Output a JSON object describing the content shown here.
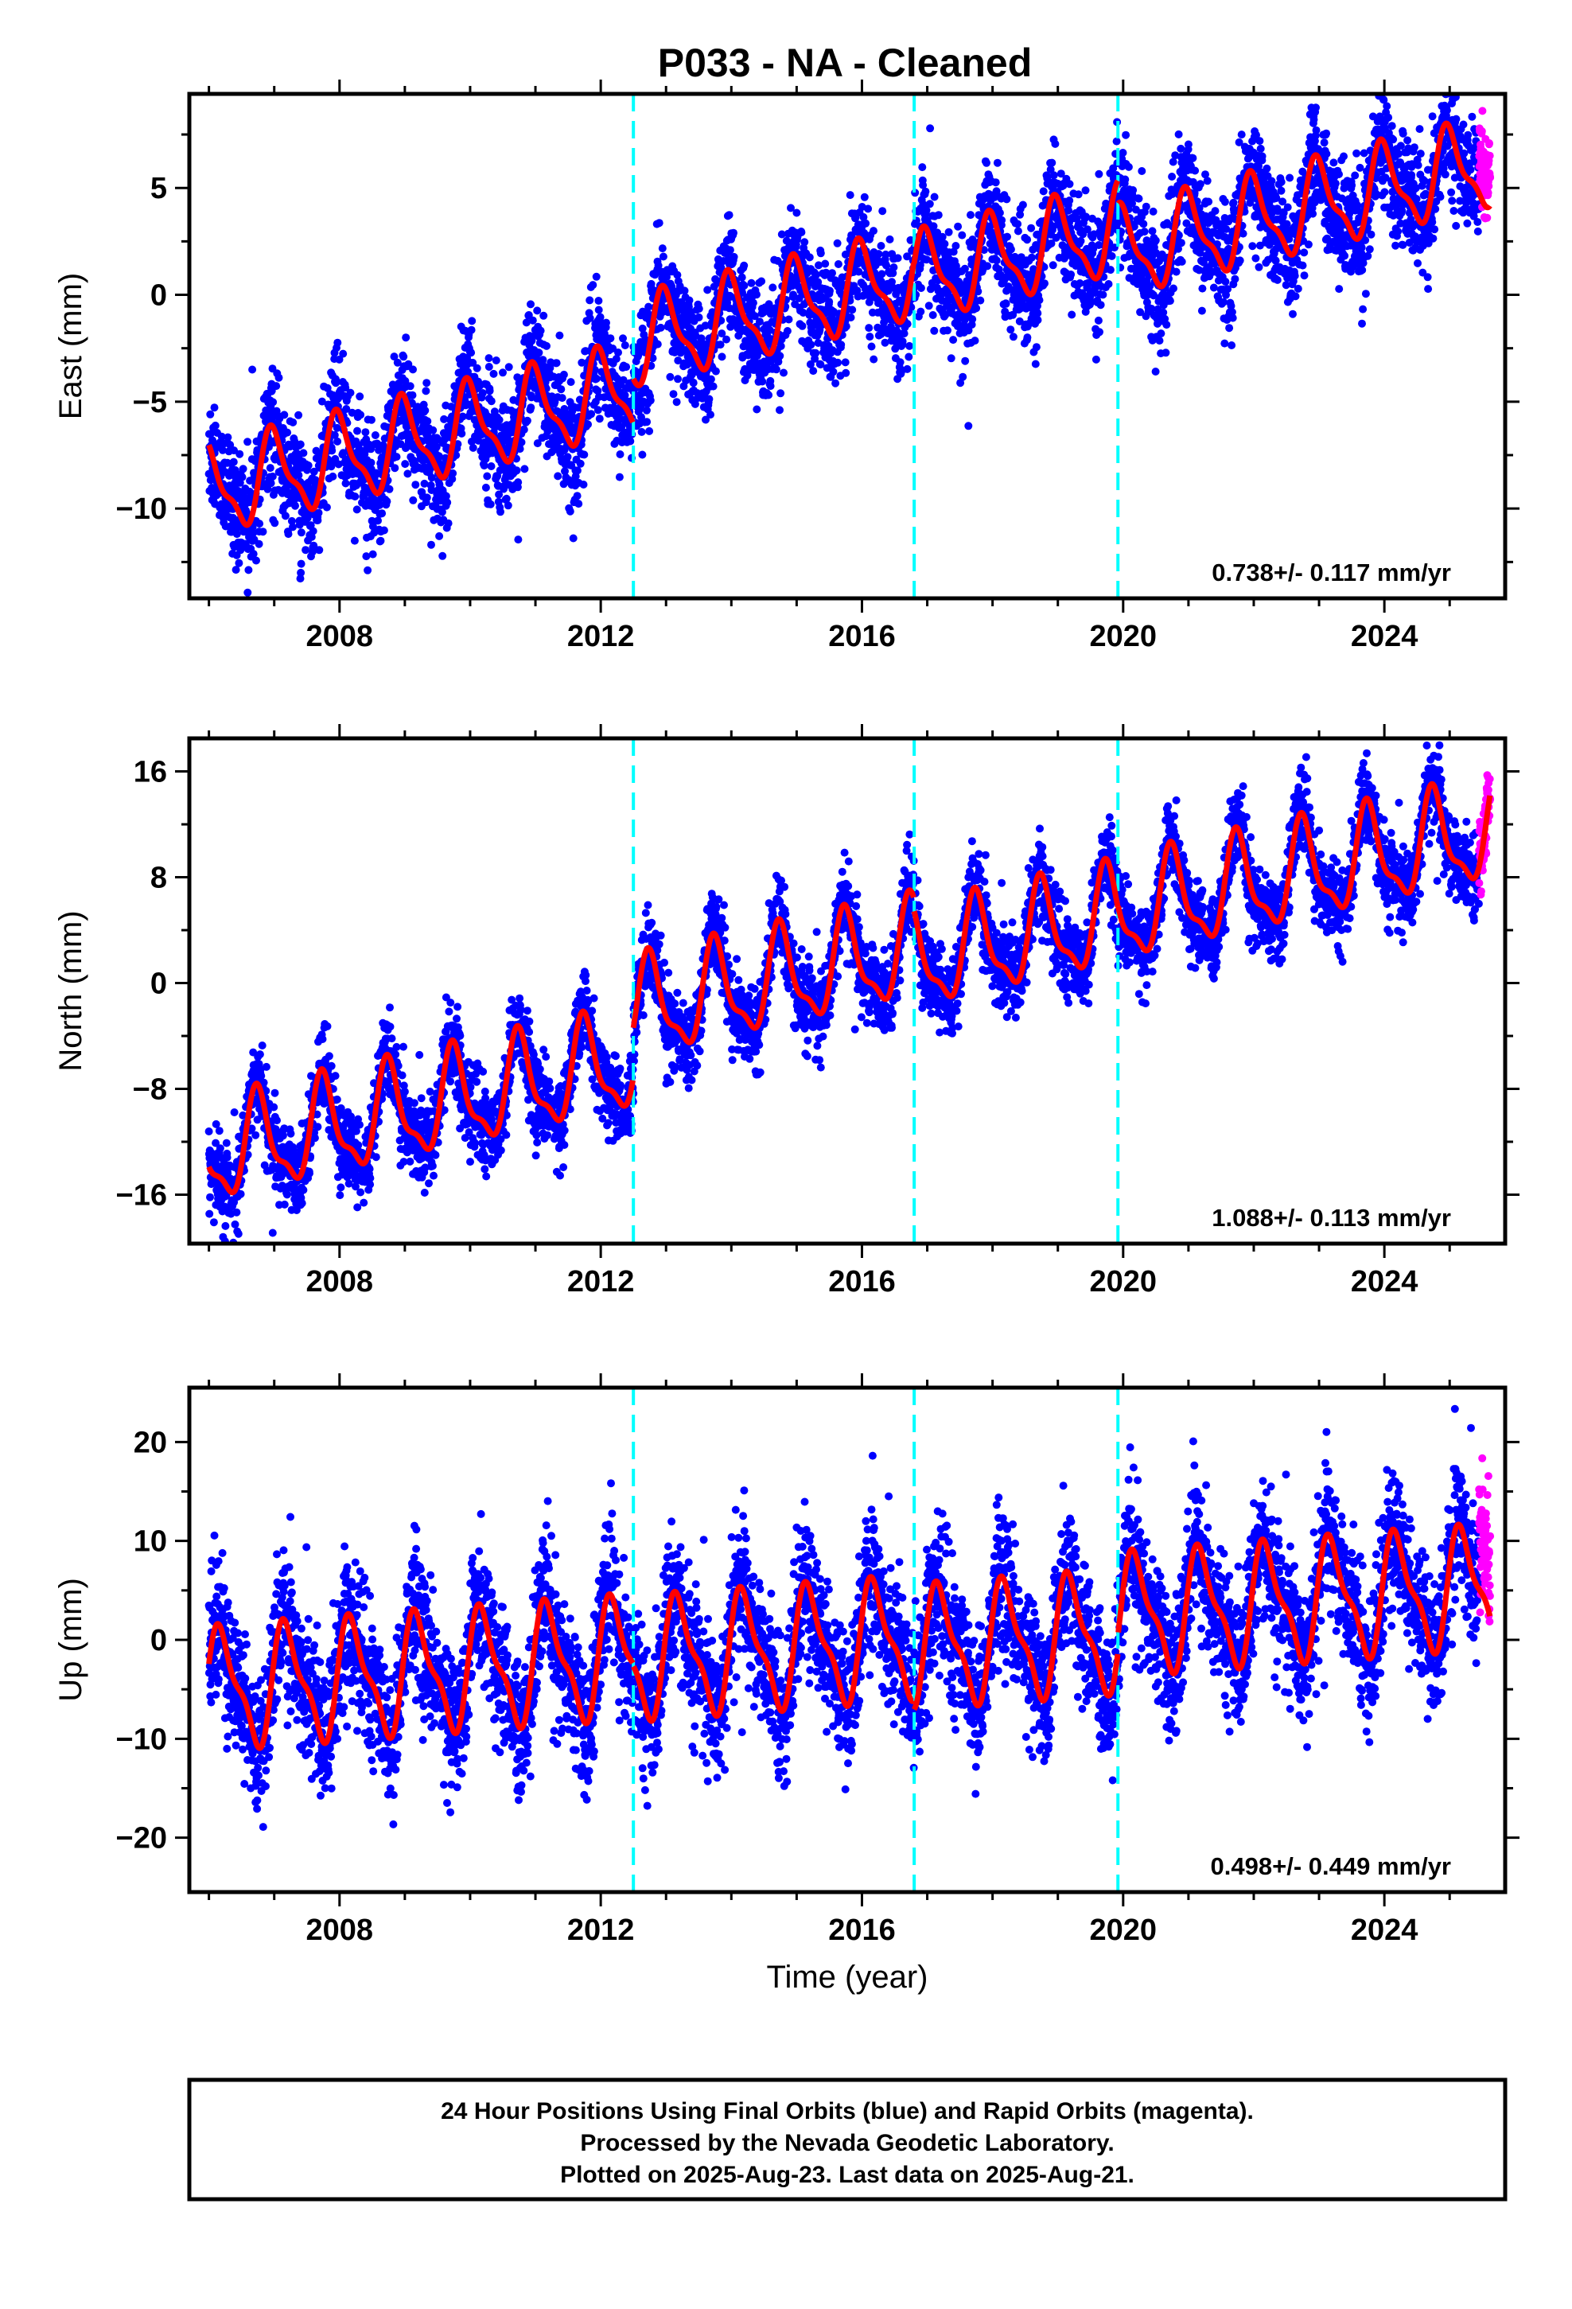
{
  "title": "P033  - NA - Cleaned",
  "xlabel": "Time (year)",
  "footer": {
    "line1": "24 Hour Positions Using Final Orbits (blue) and Rapid Orbits (magenta).",
    "line2": "Processed by the Nevada Geodetic Laboratory.",
    "line3": "Plotted on 2025-Aug-23. Last data on 2025-Aug-21."
  },
  "colors": {
    "final_orbits": "#0000ff",
    "rapid_orbits": "#ff00ff",
    "model": "#ff0000",
    "event_lines": "#00ffff",
    "frame": "#000000"
  },
  "chart_data": [
    {
      "type": "scatter",
      "panel": "east",
      "ylabel": "East (mm)",
      "rate_text": "0.738+/- 0.117 mm/yr",
      "xlim": [
        2005.7,
        2025.85
      ],
      "ylim": [
        -14.2,
        9.4
      ],
      "xticks": [
        2008,
        2012,
        2016,
        2020,
        2024
      ],
      "yticks": [
        -10,
        -5,
        0,
        5
      ],
      "yminor": [
        -12.5,
        -7.5,
        -2.5,
        2.5,
        7.5
      ],
      "event_lines": [
        2012.5,
        2016.8,
        2019.92
      ],
      "model": {
        "start": 2006.0,
        "end": 2025.62,
        "segments": [
          {
            "from": 2006.0,
            "to": 2012.5,
            "value_at_start": -9.2,
            "trend": 0.74,
            "amp": 1.9,
            "phase": 1.6
          },
          {
            "from": 2012.5,
            "to": 2016.8,
            "value_at_start": -2.3,
            "trend": 0.74,
            "amp": 1.9,
            "phase": 1.6
          },
          {
            "from": 2016.8,
            "to": 2019.92,
            "value_at_start": 0.7,
            "trend": 0.74,
            "amp": 1.9,
            "phase": 1.6
          },
          {
            "from": 2019.92,
            "to": 2025.62,
            "value_at_start": 1.9,
            "trend": 0.74,
            "amp": 1.9,
            "phase": 1.6
          }
        ]
      },
      "noise_sd": 1.3,
      "rapid_range": [
        2025.45,
        2025.62
      ],
      "rapid_offset": 1.6
    },
    {
      "type": "scatter",
      "panel": "north",
      "ylabel": "North (mm)",
      "rate_text": "1.088+/- 0.113 mm/yr",
      "xlim": [
        2005.7,
        2025.85
      ],
      "ylim": [
        -19.7,
        18.5
      ],
      "xticks": [
        2008,
        2012,
        2016,
        2020,
        2024
      ],
      "yticks": [
        -16,
        -8,
        0,
        8,
        16
      ],
      "yminor": [
        -12,
        -4,
        4,
        12
      ],
      "event_lines": [
        2012.5,
        2016.8,
        2019.92
      ],
      "model": {
        "start": 2006.0,
        "end": 2025.62,
        "segments": [
          {
            "from": 2006.0,
            "to": 2012.5,
            "value_at_start": -13.0,
            "trend": 1.09,
            "amp": 3.5,
            "phase": 3.1
          },
          {
            "from": 2012.5,
            "to": 2016.8,
            "value_at_start": -2.2,
            "trend": 1.09,
            "amp": 3.5,
            "phase": 3.1
          },
          {
            "from": 2016.8,
            "to": 2019.92,
            "value_at_start": 1.6,
            "trend": 1.09,
            "amp": 3.5,
            "phase": 3.1
          },
          {
            "from": 2019.92,
            "to": 2025.62,
            "value_at_start": 5.2,
            "trend": 1.09,
            "amp": 3.5,
            "phase": 3.1
          }
        ]
      },
      "noise_sd": 1.5,
      "rapid_range": [
        2025.45,
        2025.62
      ],
      "rapid_offset": 0.3
    },
    {
      "type": "scatter",
      "panel": "up",
      "ylabel": "Up (mm)",
      "rate_text": "0.498+/- 0.449 mm/yr",
      "xlim": [
        2005.7,
        2025.85
      ],
      "ylim": [
        -25.5,
        25.5
      ],
      "xticks": [
        2008,
        2012,
        2016,
        2020,
        2024
      ],
      "yticks": [
        -20,
        -10,
        0,
        10,
        20
      ],
      "yminor": [
        -15,
        -5,
        5,
        15
      ],
      "event_lines": [
        2012.5,
        2016.8,
        2019.92
      ],
      "model": {
        "start": 2006.0,
        "end": 2025.62,
        "segments": [
          {
            "from": 2006.0,
            "to": 2012.5,
            "value_at_start": -5.0,
            "trend": 0.5,
            "amp": 5.5,
            "phase": 0.3
          },
          {
            "from": 2012.5,
            "to": 2016.8,
            "value_at_start": -2.0,
            "trend": 0.5,
            "amp": 5.5,
            "phase": 0.3
          },
          {
            "from": 2016.8,
            "to": 2019.92,
            "value_at_start": -0.8,
            "trend": 0.5,
            "amp": 5.5,
            "phase": 0.3
          },
          {
            "from": 2019.92,
            "to": 2025.62,
            "value_at_start": 2.5,
            "trend": 0.5,
            "amp": 5.5,
            "phase": 0.3
          }
        ]
      },
      "noise_sd": 3.4,
      "rapid_range": [
        2025.45,
        2025.62
      ],
      "rapid_offset": 5.0
    }
  ]
}
